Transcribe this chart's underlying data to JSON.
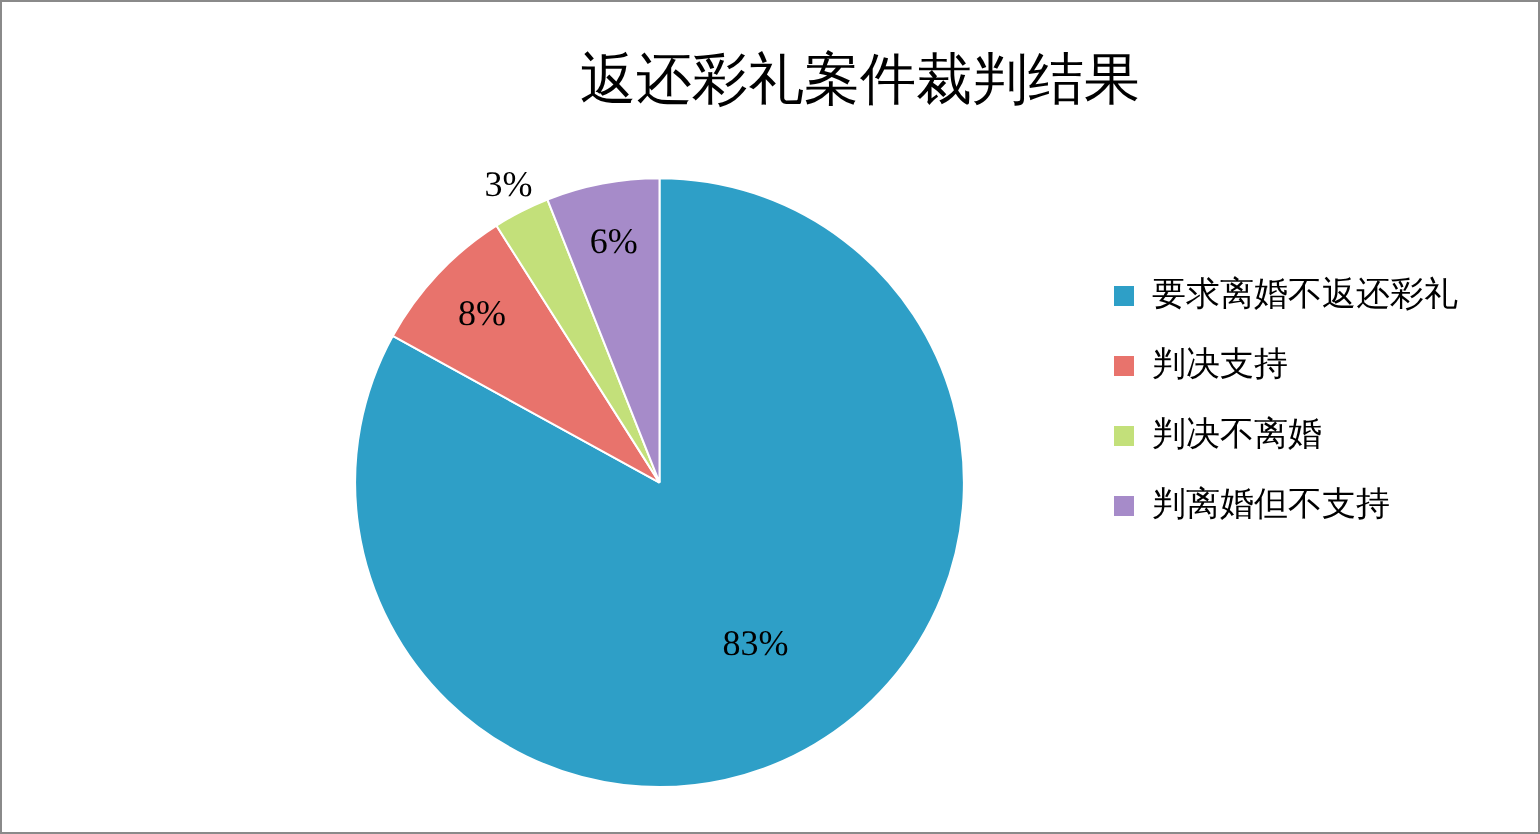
{
  "chart_data": {
    "type": "pie",
    "title": "返还彩礼案件裁判结果",
    "categories": [
      "要求离婚不返还彩礼",
      "判决支持",
      "判决不离婚",
      "判离婚但不支持"
    ],
    "values": [
      83,
      8,
      3,
      6
    ],
    "colors": [
      "#2e9fc7",
      "#e8736c",
      "#c3e07a",
      "#a68bc9"
    ],
    "value_labels": [
      "83%",
      "8%",
      "3%",
      "6%"
    ],
    "legend": "right"
  }
}
